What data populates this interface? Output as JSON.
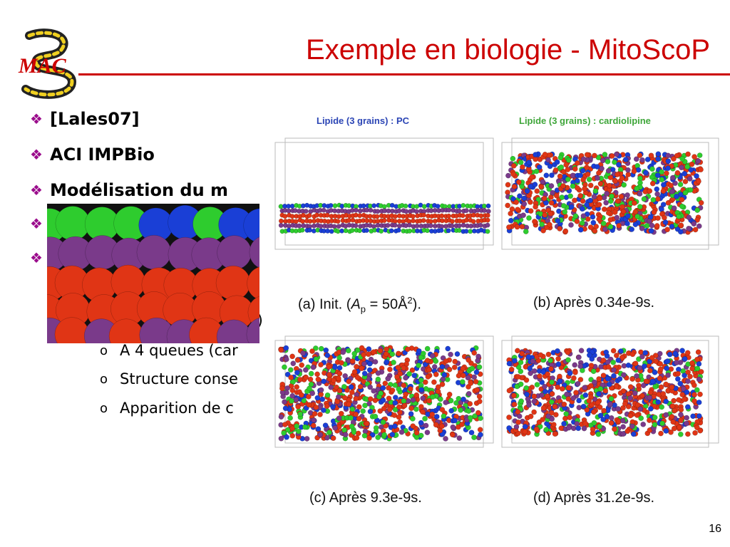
{
  "slide": {
    "title": "Exemple en biologie - MitoScoP",
    "logo_text": "MAC",
    "page_number": "16",
    "colors": {
      "title": "#cc0000",
      "bullet_marker": "#9b0d8c"
    }
  },
  "bullets": [
    {
      "text": "[Lales07]"
    },
    {
      "text": "ACI IMPBio"
    },
    {
      "text": "Modélisation du m"
    },
    {
      "text": ""
    },
    {
      "text": ""
    }
  ],
  "sub_bullets": [
    {
      "marker": "o",
      "text": "A 4 queues (car"
    },
    {
      "marker": "o",
      "text": "Structure conse"
    },
    {
      "marker": "o",
      "text": "Apparition de c"
    }
  ],
  "partial_text": {
    "line1": "C)"
  },
  "figure": {
    "panel_titles": {
      "left": "Lipide (3 grains) : PC",
      "right": "Lipide (3 grains) : cardiolipine"
    },
    "panel_title_colors": {
      "left": "#2b45b5",
      "right": "#3fa63a"
    },
    "captions": {
      "a_prefix": "(a)  Init. (",
      "a_var": "A",
      "a_sub": "p",
      "a_suffix": " = 50Å",
      "a_exp": "2",
      "a_end": ").",
      "b": "(b)  Après 0.34e-9s.",
      "c": "(c)  Après 9.3e-9s.",
      "d": "(d)  Après 31.2e-9s."
    },
    "bead_colors": {
      "head": "#1a3fd6",
      "mid": "#2ecc2e",
      "tail1": "#7a3a8a",
      "tail2": "#e03515"
    }
  }
}
